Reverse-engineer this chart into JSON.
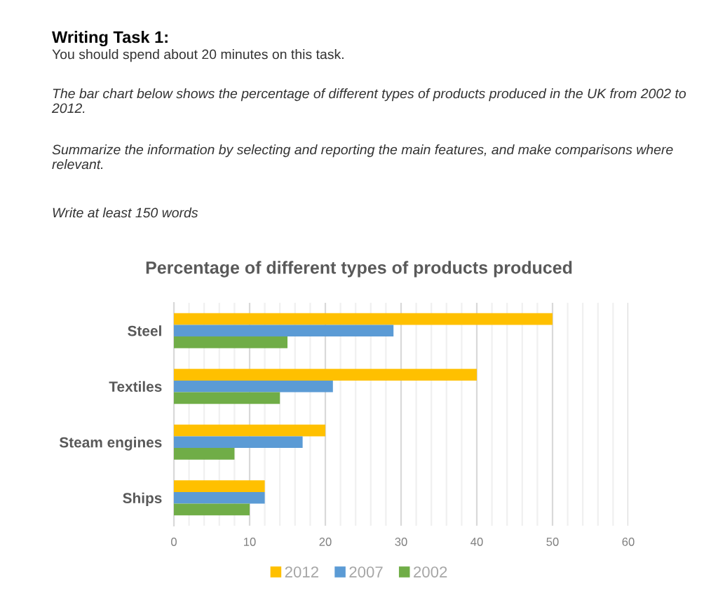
{
  "chart_data": {
    "type": "bar",
    "orientation": "horizontal",
    "title": "Percentage of different types of products produced",
    "annotations": [
      "Writing Task 1:",
      "You should spend about 20 minutes on this task.",
      "The bar chart below shows the percentage of different types of products produced in the UK from 2002 to 2012.",
      "Summarize the information by selecting and reporting the main features, and make comparisons where relevant.",
      "Write at least 150 words"
    ],
    "categories": [
      "Steel",
      "Textiles",
      "Steam engines",
      "Ships"
    ],
    "series": [
      {
        "name": "2012",
        "color": "#ffc000",
        "values": [
          50,
          40,
          20,
          12
        ]
      },
      {
        "name": "2007",
        "color": "#5b9bd5",
        "values": [
          29,
          21,
          17,
          12
        ]
      },
      {
        "name": "2002",
        "color": "#70ad47",
        "values": [
          15,
          14,
          8,
          10
        ]
      }
    ],
    "xlim": [
      0,
      60
    ],
    "xticks": [
      0,
      {
        "value": 2,
        "label": null
      },
      {
        "value": 4,
        "label": null
      },
      {
        "value": 6,
        "label": null
      },
      {
        "value": 8,
        "label": null
      },
      10,
      {
        "value": 12,
        "label": null
      },
      {
        "value": 14,
        "label": null
      },
      {
        "value": 16,
        "label": null
      },
      {
        "value": 18,
        "label": null
      },
      20,
      {
        "value": 22,
        "label": null
      },
      {
        "value": 24,
        "label": null
      },
      {
        "value": 26,
        "label": null
      },
      {
        "value": 28,
        "label": null
      },
      30,
      {
        "value": 32,
        "label": null
      },
      {
        "value": 34,
        "label": null
      },
      {
        "value": 36,
        "label": null
      },
      {
        "value": 38,
        "label": null
      },
      40,
      {
        "value": 42,
        "label": null
      },
      {
        "value": 44,
        "label": null
      },
      {
        "value": 46,
        "label": null
      },
      {
        "value": 48,
        "label": null
      },
      50,
      {
        "value": 52,
        "label": null
      },
      {
        "value": 54,
        "label": null
      },
      {
        "value": 56,
        "label": null
      },
      {
        "value": 58,
        "label": null
      },
      60
    ],
    "grid": "x",
    "legend": "bottom"
  }
}
